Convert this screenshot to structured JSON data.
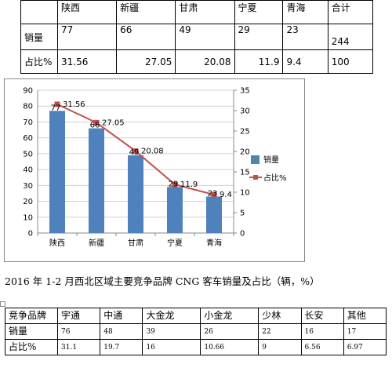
{
  "table1": {
    "header": [
      "",
      "陕西",
      "新疆",
      "甘肃",
      "宁夏",
      "青海",
      "合计"
    ],
    "rows": [
      [
        "销量",
        "77",
        "66",
        "49",
        "29",
        "23",
        "244"
      ],
      [
        "占比%",
        "31.56",
        "27.05",
        "20.08",
        "11.9",
        "9.4",
        "100"
      ]
    ]
  },
  "chart_data": {
    "type": "bar",
    "categories": [
      "陕西",
      "新疆",
      "甘肃",
      "宁夏",
      "青海"
    ],
    "series": [
      {
        "name": "销量",
        "type": "bar",
        "axis": "left",
        "values": [
          77,
          66,
          49,
          29,
          23
        ],
        "color": "#4f81bd"
      },
      {
        "name": "占比%",
        "type": "line",
        "axis": "right",
        "values": [
          31.56,
          27.05,
          20.08,
          11.9,
          9.4
        ],
        "color": "#c0504d"
      }
    ],
    "bar_labels": [
      "77",
      "66",
      "49",
      "29",
      "23"
    ],
    "line_labels": [
      "31.56",
      "27.05",
      "20.08",
      "11.9",
      "9.4"
    ],
    "ylim_left": [
      0,
      90
    ],
    "yticks_left": [
      "0",
      "10",
      "20",
      "30",
      "40",
      "50",
      "60",
      "70",
      "80",
      "90"
    ],
    "ylim_right": [
      0,
      35
    ],
    "yticks_right": [
      "0",
      "5",
      "10",
      "15",
      "20",
      "25",
      "30",
      "35"
    ],
    "grid": true,
    "legend_position": "right"
  },
  "caption": "2016 年 1-2 月西北区域主要竞争品牌 CNG 客车销量及占比（辆，%）",
  "table2": {
    "header": [
      "竞争品牌",
      "宇通",
      "中通",
      "大金龙",
      "小金龙",
      "少林",
      "长安",
      "其他"
    ],
    "rows": [
      [
        "销量",
        "76",
        "48",
        "39",
        "26",
        "22",
        "16",
        "17"
      ],
      [
        "占比%",
        "31.1",
        "19.7",
        "16",
        "10.66",
        "9",
        "6.56",
        "6.97"
      ]
    ]
  }
}
